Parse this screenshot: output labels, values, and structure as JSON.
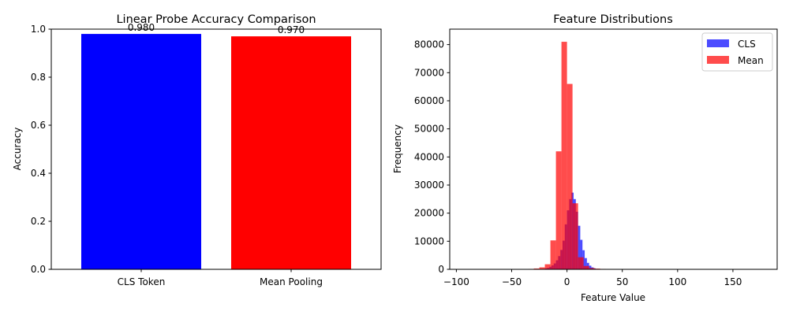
{
  "chart_data": [
    {
      "type": "bar",
      "title": "Linear Probe Accuracy Comparison",
      "xlabel": "",
      "ylabel": "Accuracy",
      "categories": [
        "CLS Token",
        "Mean Pooling"
      ],
      "values": [
        0.98,
        0.97
      ],
      "bar_labels": [
        "0.980",
        "0.970"
      ],
      "colors": [
        "#0000ff",
        "#ff0000"
      ],
      "ylim": [
        0,
        1.0
      ],
      "yticks": [
        0.0,
        0.2,
        0.4,
        0.6,
        0.8,
        1.0
      ],
      "ytick_labels": [
        "0.0",
        "0.2",
        "0.4",
        "0.6",
        "0.8",
        "1.0"
      ],
      "grid": false
    },
    {
      "type": "histogram",
      "title": "Feature Distributions",
      "xlabel": "Feature Value",
      "ylabel": "Frequency",
      "xlim": [
        -106,
        190
      ],
      "ylim": [
        0,
        85500
      ],
      "xticks": [
        -100,
        -50,
        0,
        50,
        100,
        150
      ],
      "xtick_labels": [
        "−100",
        "−50",
        "0",
        "50",
        "100",
        "150"
      ],
      "yticks": [
        0,
        10000,
        20000,
        30000,
        40000,
        50000,
        60000,
        70000,
        80000
      ],
      "ytick_labels": [
        "0",
        "10000",
        "20000",
        "30000",
        "40000",
        "50000",
        "60000",
        "70000",
        "80000"
      ],
      "legend_position": "top-right",
      "grid": false,
      "series": [
        {
          "name": "CLS",
          "color": "#0000ff",
          "opacity": 0.7,
          "bins": [
            [
              -24,
              -22,
              60
            ],
            [
              -22,
              -20,
              150
            ],
            [
              -20,
              -18,
              300
            ],
            [
              -18,
              -16,
              500
            ],
            [
              -16,
              -14,
              900
            ],
            [
              -14,
              -12,
              1400
            ],
            [
              -12,
              -10,
              2100
            ],
            [
              -10,
              -8,
              3200
            ],
            [
              -8,
              -6,
              4700
            ],
            [
              -6,
              -4,
              6900
            ],
            [
              -4,
              -2,
              10200
            ],
            [
              -2,
              0,
              16000
            ],
            [
              0,
              2,
              21000
            ],
            [
              2,
              4,
              25000
            ],
            [
              4,
              6,
              27300
            ],
            [
              6,
              8,
              25000
            ],
            [
              8,
              10,
              20500
            ],
            [
              10,
              12,
              15500
            ],
            [
              12,
              14,
              10500
            ],
            [
              14,
              16,
              6800
            ],
            [
              16,
              18,
              4000
            ],
            [
              18,
              20,
              2300
            ],
            [
              20,
              22,
              1300
            ],
            [
              22,
              24,
              700
            ],
            [
              24,
              26,
              350
            ],
            [
              26,
              28,
              150
            ],
            [
              28,
              30,
              60
            ]
          ]
        },
        {
          "name": "Mean",
          "color": "#ff0000",
          "opacity": 0.7,
          "bins": [
            [
              -95,
              -90,
              20
            ],
            [
              -90,
              -85,
              20
            ],
            [
              -85,
              -80,
              25
            ],
            [
              -80,
              -75,
              30
            ],
            [
              -75,
              -70,
              30
            ],
            [
              -70,
              -65,
              40
            ],
            [
              -65,
              -60,
              40
            ],
            [
              -60,
              -55,
              50
            ],
            [
              -55,
              -50,
              60
            ],
            [
              -50,
              -45,
              60
            ],
            [
              -45,
              -40,
              80
            ],
            [
              -40,
              -35,
              100
            ],
            [
              -35,
              -30,
              150
            ],
            [
              -30,
              -25,
              300
            ],
            [
              -25,
              -20,
              700
            ],
            [
              -20,
              -15,
              1800
            ],
            [
              -15,
              -10,
              10300
            ],
            [
              -10,
              -5,
              42000
            ],
            [
              -5,
              0,
              81000
            ],
            [
              0,
              5,
              66000
            ],
            [
              5,
              10,
              23500
            ],
            [
              10,
              15,
              4300
            ],
            [
              15,
              20,
              1200
            ],
            [
              20,
              25,
              450
            ],
            [
              25,
              30,
              250
            ],
            [
              30,
              35,
              150
            ],
            [
              35,
              40,
              120
            ],
            [
              40,
              45,
              100
            ],
            [
              45,
              50,
              80
            ],
            [
              50,
              55,
              70
            ],
            [
              55,
              60,
              60
            ],
            [
              60,
              65,
              50
            ],
            [
              65,
              70,
              40
            ],
            [
              70,
              75,
              40
            ],
            [
              75,
              80,
              40
            ],
            [
              80,
              85,
              40
            ],
            [
              85,
              90,
              30
            ],
            [
              90,
              95,
              30
            ],
            [
              95,
              100,
              30
            ],
            [
              100,
              105,
              30
            ],
            [
              105,
              110,
              25
            ],
            [
              110,
              115,
              20
            ],
            [
              115,
              120,
              20
            ],
            [
              120,
              125,
              20
            ],
            [
              125,
              130,
              20
            ],
            [
              130,
              135,
              15
            ],
            [
              135,
              140,
              15
            ],
            [
              140,
              145,
              15
            ],
            [
              145,
              150,
              10
            ],
            [
              150,
              155,
              10
            ],
            [
              155,
              160,
              10
            ],
            [
              160,
              165,
              10
            ],
            [
              165,
              170,
              10
            ],
            [
              170,
              175,
              10
            ]
          ]
        }
      ]
    }
  ]
}
